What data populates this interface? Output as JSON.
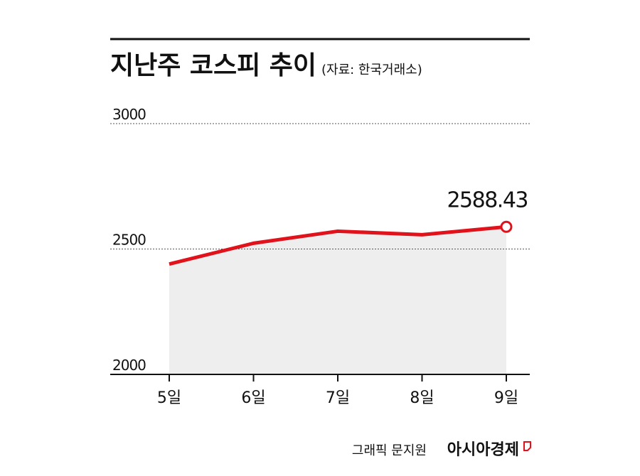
{
  "chart_data": {
    "type": "line",
    "title": "지난주 코스피 추이",
    "subtitle": "(자료: 한국거래소)",
    "categories": [
      "5일",
      "6일",
      "7일",
      "8일",
      "9일"
    ],
    "values": [
      2440,
      2523,
      2571,
      2557,
      2588.43
    ],
    "color": "#e0121c",
    "area_color": "#eeeeee",
    "ylim": [
      2000,
      3000
    ],
    "yticks": [
      2000,
      2500,
      3000
    ],
    "grid": true,
    "credit": "그래픽 문지원",
    "publisher": "아시아경제"
  }
}
